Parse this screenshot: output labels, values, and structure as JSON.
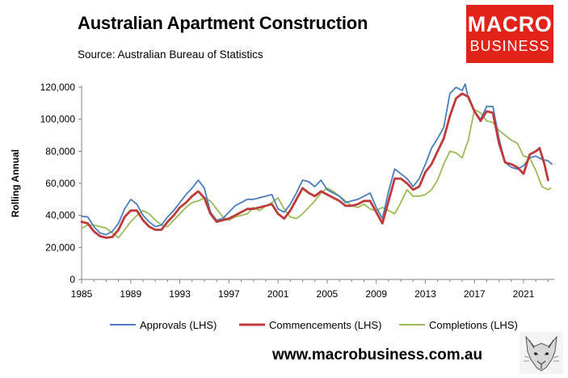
{
  "header": {
    "title": "Australian Apartment Construction",
    "subtitle": "Source: Australian Bureau of Statistics"
  },
  "logo": {
    "line1": "MACRO",
    "line2": "BUSINESS"
  },
  "footer": {
    "url": "www.macrobusiness.com.au"
  },
  "chart_data": {
    "type": "line",
    "ylabel": "Rolling Annual",
    "xlim": [
      1985,
      2023.5
    ],
    "ylim": [
      0,
      120000
    ],
    "xticks": [
      1985,
      1989,
      1993,
      1997,
      2001,
      2005,
      2009,
      2013,
      2017,
      2021
    ],
    "yticks": [
      0,
      20000,
      40000,
      60000,
      80000,
      100000,
      120000
    ],
    "ytick_labels": [
      "0",
      "20,000",
      "40,000",
      "60,000",
      "80,000",
      "100,000",
      "120,000"
    ],
    "legend_position": "bottom",
    "grid": false,
    "series": [
      {
        "name": "Approvals (LHS)",
        "color": "#4a7ebb",
        "points": [
          [
            1985,
            39500
          ],
          [
            1985.5,
            39000
          ],
          [
            1986,
            33000
          ],
          [
            1986.5,
            29000
          ],
          [
            1987,
            28000
          ],
          [
            1987.5,
            30000
          ],
          [
            1988,
            35000
          ],
          [
            1988.5,
            44000
          ],
          [
            1989,
            50000
          ],
          [
            1989.5,
            47000
          ],
          [
            1990,
            40000
          ],
          [
            1990.5,
            36000
          ],
          [
            1991,
            33000
          ],
          [
            1991.5,
            34000
          ],
          [
            1992,
            39000
          ],
          [
            1992.5,
            43000
          ],
          [
            1993,
            48000
          ],
          [
            1993.5,
            53000
          ],
          [
            1994,
            57000
          ],
          [
            1994.5,
            62000
          ],
          [
            1995,
            57000
          ],
          [
            1995.5,
            42000
          ],
          [
            1996,
            37000
          ],
          [
            1996.5,
            38000
          ],
          [
            1997,
            42000
          ],
          [
            1997.5,
            46000
          ],
          [
            1998,
            48000
          ],
          [
            1998.5,
            50000
          ],
          [
            1999,
            50000
          ],
          [
            1999.5,
            51000
          ],
          [
            2000,
            52000
          ],
          [
            2000.5,
            53000
          ],
          [
            2001,
            44000
          ],
          [
            2001.5,
            42000
          ],
          [
            2002,
            47000
          ],
          [
            2002.5,
            54000
          ],
          [
            2003,
            62000
          ],
          [
            2003.5,
            61000
          ],
          [
            2004,
            58000
          ],
          [
            2004.5,
            62000
          ],
          [
            2005,
            56000
          ],
          [
            2005.5,
            54000
          ],
          [
            2006,
            52000
          ],
          [
            2006.5,
            48000
          ],
          [
            2007,
            49000
          ],
          [
            2007.5,
            50000
          ],
          [
            2008,
            52000
          ],
          [
            2008.5,
            54000
          ],
          [
            2009,
            45000
          ],
          [
            2009.5,
            38000
          ],
          [
            2010,
            55000
          ],
          [
            2010.5,
            69000
          ],
          [
            2011,
            66000
          ],
          [
            2011.5,
            63000
          ],
          [
            2012,
            58000
          ],
          [
            2012.5,
            63000
          ],
          [
            2013,
            72000
          ],
          [
            2013.5,
            82000
          ],
          [
            2014,
            88000
          ],
          [
            2014.5,
            95000
          ],
          [
            2015,
            116000
          ],
          [
            2015.5,
            120000
          ],
          [
            2016,
            118000
          ],
          [
            2016.25,
            122000
          ],
          [
            2016.5,
            113000
          ],
          [
            2017,
            105000
          ],
          [
            2017.5,
            100000
          ],
          [
            2018,
            108000
          ],
          [
            2018.5,
            108000
          ],
          [
            2019,
            88000
          ],
          [
            2019.5,
            73000
          ],
          [
            2020,
            70000
          ],
          [
            2020.5,
            69000
          ],
          [
            2021,
            71000
          ],
          [
            2021.5,
            76000
          ],
          [
            2022,
            77000
          ],
          [
            2022.5,
            75000
          ],
          [
            2023,
            74000
          ],
          [
            2023.3,
            72000
          ]
        ]
      },
      {
        "name": "Commencements (LHS)",
        "color": "#c0393b",
        "points": [
          [
            1985,
            36000
          ],
          [
            1985.5,
            35000
          ],
          [
            1986,
            30000
          ],
          [
            1986.5,
            27000
          ],
          [
            1987,
            26000
          ],
          [
            1987.5,
            26500
          ],
          [
            1988,
            31000
          ],
          [
            1988.5,
            39000
          ],
          [
            1989,
            43000
          ],
          [
            1989.5,
            43000
          ],
          [
            1990,
            37000
          ],
          [
            1990.5,
            33000
          ],
          [
            1991,
            31000
          ],
          [
            1991.5,
            31000
          ],
          [
            1992,
            36000
          ],
          [
            1992.5,
            40000
          ],
          [
            1993,
            45000
          ],
          [
            1993.5,
            48000
          ],
          [
            1994,
            52000
          ],
          [
            1994.5,
            55000
          ],
          [
            1995,
            51000
          ],
          [
            1995.5,
            41000
          ],
          [
            1996,
            36000
          ],
          [
            1996.5,
            37000
          ],
          [
            1997,
            38000
          ],
          [
            1997.5,
            40000
          ],
          [
            1998,
            42000
          ],
          [
            1998.5,
            44000
          ],
          [
            1999,
            44000
          ],
          [
            1999.5,
            45000
          ],
          [
            2000,
            46000
          ],
          [
            2000.5,
            47000
          ],
          [
            2001,
            41000
          ],
          [
            2001.5,
            38000
          ],
          [
            2002,
            43000
          ],
          [
            2002.5,
            50000
          ],
          [
            2003,
            57000
          ],
          [
            2003.5,
            54000
          ],
          [
            2004,
            52000
          ],
          [
            2004.5,
            55000
          ],
          [
            2005,
            53000
          ],
          [
            2005.5,
            51000
          ],
          [
            2006,
            49000
          ],
          [
            2006.5,
            46000
          ],
          [
            2007,
            46000
          ],
          [
            2007.5,
            47000
          ],
          [
            2008,
            49000
          ],
          [
            2008.5,
            49000
          ],
          [
            2009,
            42000
          ],
          [
            2009.5,
            35000
          ],
          [
            2010,
            49000
          ],
          [
            2010.5,
            63000
          ],
          [
            2011,
            63000
          ],
          [
            2011.5,
            60000
          ],
          [
            2012,
            56000
          ],
          [
            2012.5,
            58000
          ],
          [
            2013,
            67000
          ],
          [
            2013.5,
            72000
          ],
          [
            2014,
            80000
          ],
          [
            2014.5,
            88000
          ],
          [
            2015,
            102000
          ],
          [
            2015.5,
            113000
          ],
          [
            2016,
            116000
          ],
          [
            2016.5,
            114000
          ],
          [
            2017,
            105000
          ],
          [
            2017.5,
            99000
          ],
          [
            2018,
            105000
          ],
          [
            2018.5,
            104000
          ],
          [
            2019,
            85000
          ],
          [
            2019.5,
            73000
          ],
          [
            2020,
            72000
          ],
          [
            2020.5,
            70000
          ],
          [
            2021,
            66000
          ],
          [
            2021.5,
            78000
          ],
          [
            2022,
            80000
          ],
          [
            2022.3,
            82000
          ],
          [
            2022.7,
            72000
          ],
          [
            2023,
            62000
          ]
        ]
      },
      {
        "name": "Completions (LHS)",
        "color": "#9bbb59",
        "points": [
          [
            1985,
            32000
          ],
          [
            1985.5,
            34000
          ],
          [
            1986,
            34000
          ],
          [
            1986.5,
            33000
          ],
          [
            1987,
            32000
          ],
          [
            1987.5,
            29000
          ],
          [
            1988,
            26000
          ],
          [
            1988.5,
            31000
          ],
          [
            1989,
            36000
          ],
          [
            1989.5,
            40000
          ],
          [
            1990,
            43000
          ],
          [
            1990.5,
            41000
          ],
          [
            1991,
            37000
          ],
          [
            1991.5,
            34000
          ],
          [
            1992,
            33000
          ],
          [
            1992.5,
            37000
          ],
          [
            1993,
            41000
          ],
          [
            1993.5,
            45000
          ],
          [
            1994,
            48000
          ],
          [
            1994.5,
            49000
          ],
          [
            1995,
            51000
          ],
          [
            1995.5,
            49000
          ],
          [
            1996,
            44000
          ],
          [
            1996.5,
            39000
          ],
          [
            1997,
            37000
          ],
          [
            1997.5,
            39000
          ],
          [
            1998,
            40000
          ],
          [
            1998.5,
            41000
          ],
          [
            1999,
            45000
          ],
          [
            1999.5,
            43000
          ],
          [
            2000,
            46000
          ],
          [
            2000.5,
            48000
          ],
          [
            2001,
            51000
          ],
          [
            2001.5,
            44000
          ],
          [
            2002,
            39000
          ],
          [
            2002.5,
            38000
          ],
          [
            2003,
            41000
          ],
          [
            2003.5,
            45000
          ],
          [
            2004,
            49000
          ],
          [
            2004.5,
            54000
          ],
          [
            2005,
            57000
          ],
          [
            2005.5,
            55000
          ],
          [
            2006,
            52000
          ],
          [
            2006.5,
            49000
          ],
          [
            2007,
            46000
          ],
          [
            2007.5,
            45000
          ],
          [
            2008,
            47000
          ],
          [
            2008.5,
            44000
          ],
          [
            2009,
            43000
          ],
          [
            2009.5,
            45000
          ],
          [
            2010,
            43000
          ],
          [
            2010.5,
            41000
          ],
          [
            2011,
            48000
          ],
          [
            2011.5,
            56000
          ],
          [
            2012,
            52000
          ],
          [
            2012.5,
            52000
          ],
          [
            2013,
            53000
          ],
          [
            2013.5,
            56000
          ],
          [
            2014,
            62000
          ],
          [
            2014.5,
            72000
          ],
          [
            2015,
            80000
          ],
          [
            2015.5,
            79000
          ],
          [
            2016,
            76000
          ],
          [
            2016.5,
            87000
          ],
          [
            2017,
            106000
          ],
          [
            2017.5,
            104000
          ],
          [
            2018,
            99000
          ],
          [
            2018.5,
            98000
          ],
          [
            2019,
            93000
          ],
          [
            2019.5,
            90000
          ],
          [
            2020,
            87000
          ],
          [
            2020.5,
            85000
          ],
          [
            2021,
            77000
          ],
          [
            2021.5,
            76000
          ],
          [
            2022,
            68000
          ],
          [
            2022.5,
            58000
          ],
          [
            2023,
            56000
          ],
          [
            2023.2,
            57000
          ]
        ]
      }
    ]
  }
}
